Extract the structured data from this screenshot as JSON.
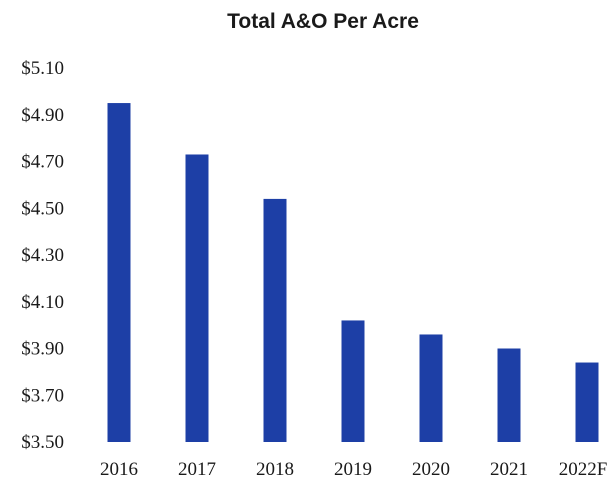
{
  "chart_data": {
    "type": "bar",
    "title": "Total A&O Per Acre",
    "xlabel": "",
    "ylabel": "",
    "categories": [
      "2016",
      "2017",
      "2018",
      "2019",
      "2020",
      "2021",
      "2022F"
    ],
    "values": [
      4.95,
      4.73,
      4.54,
      4.02,
      3.96,
      3.9,
      3.84
    ],
    "ylim": [
      3.5,
      5.1
    ],
    "yticks": [
      3.5,
      3.7,
      3.9,
      4.1,
      4.3,
      4.5,
      4.7,
      4.9,
      5.1
    ],
    "ytick_labels": [
      "$3.50",
      "$3.70",
      "$3.90",
      "$4.10",
      "$4.30",
      "$4.50",
      "$4.70",
      "$4.90",
      "$5.10"
    ],
    "grid": false,
    "legend": "none",
    "colors": {
      "bar": "#1d3fa6"
    }
  }
}
